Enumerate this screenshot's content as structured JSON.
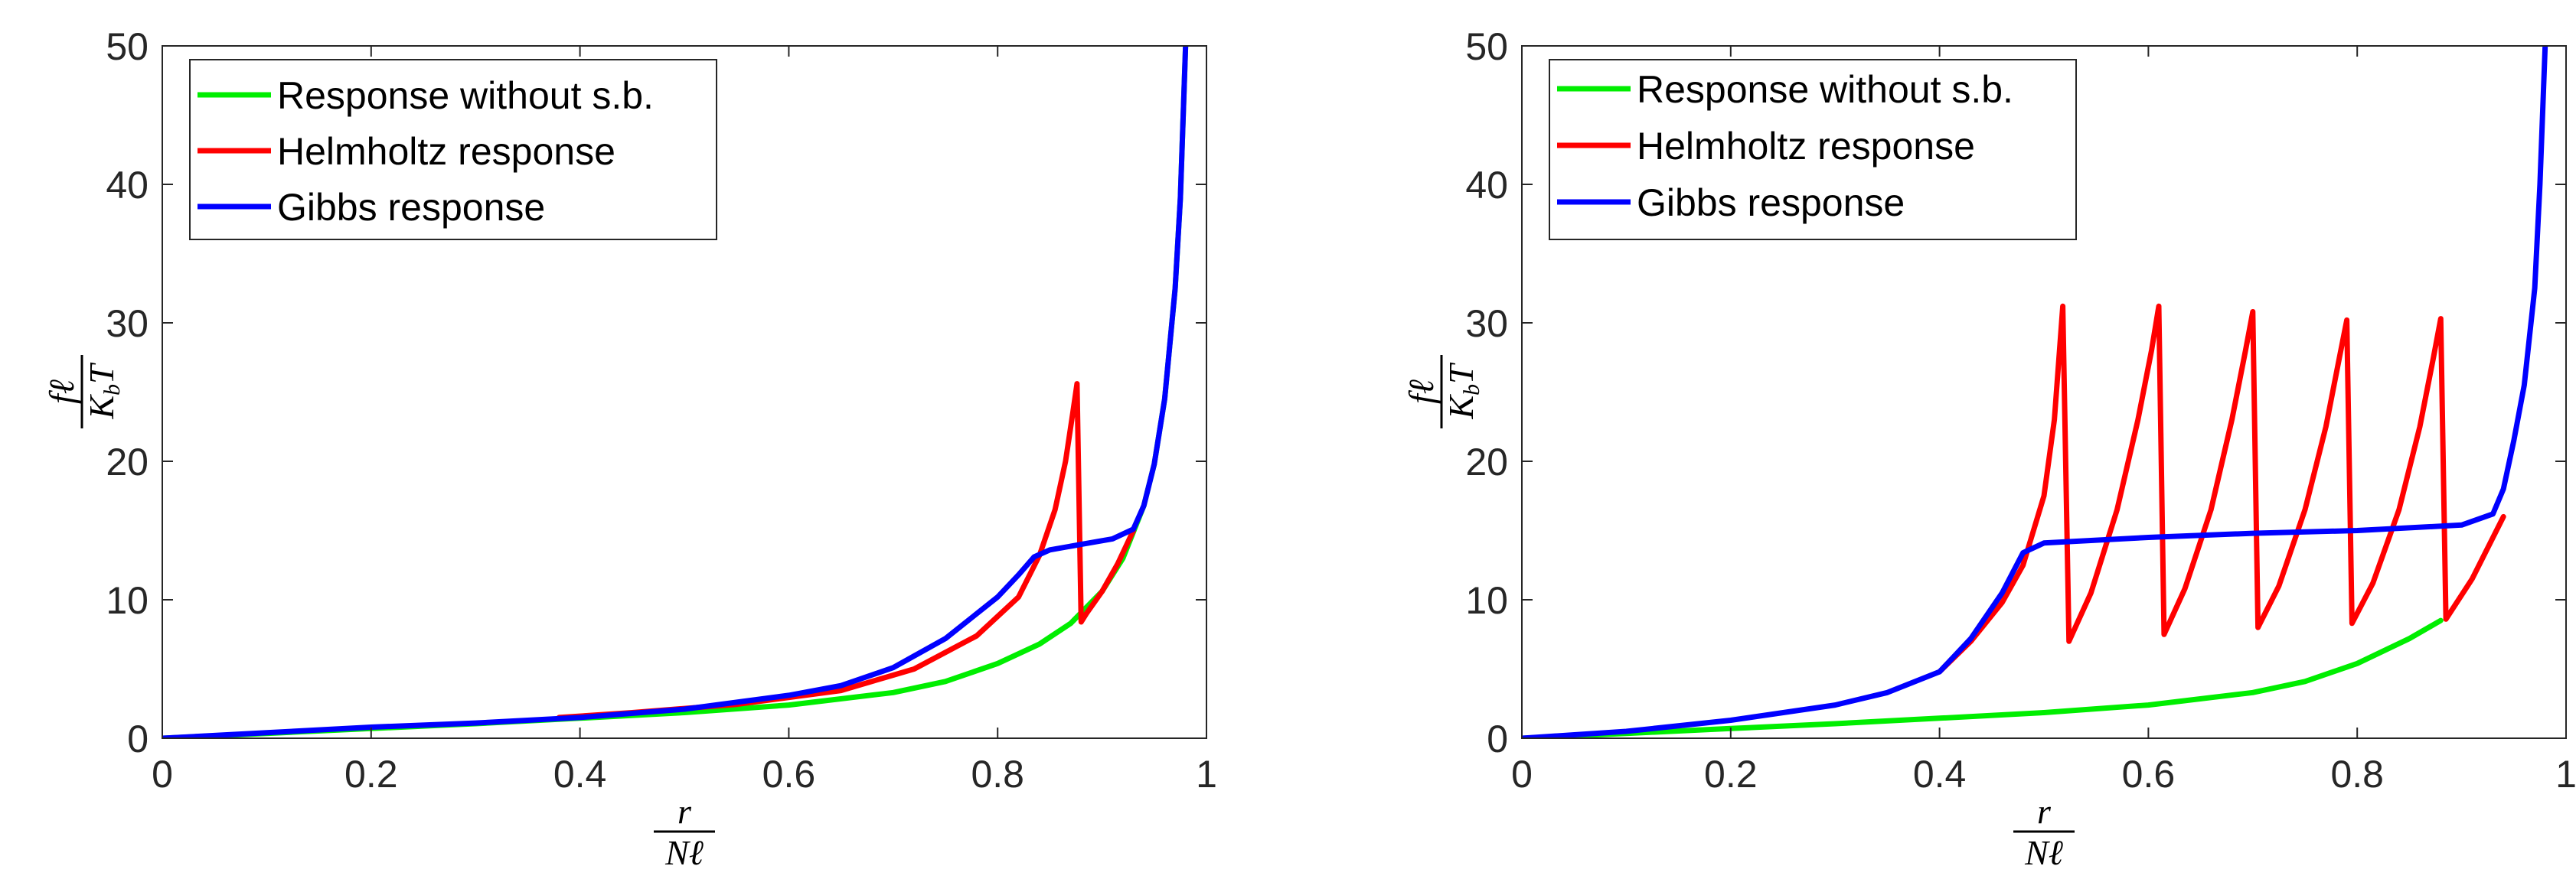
{
  "chart_data": [
    {
      "type": "line",
      "title": "",
      "xlabel": {
        "numerator": "r",
        "denominator": "Nℓ"
      },
      "ylabel": {
        "numerator": "fℓ",
        "denominator": "K",
        "denominator_subscript": "b",
        "denominator_tail": "T"
      },
      "xlim": [
        0,
        1
      ],
      "ylim": [
        0,
        50
      ],
      "xticks": [
        0,
        0.2,
        0.4,
        0.6,
        0.8,
        1
      ],
      "xtick_labels": [
        "0",
        "0.2",
        "0.4",
        "0.6",
        "0.8",
        "1"
      ],
      "yticks": [
        0,
        10,
        20,
        30,
        40,
        50
      ],
      "ytick_labels": [
        "0",
        "10",
        "20",
        "30",
        "40",
        "50"
      ],
      "grid": false,
      "legend": "top-left",
      "series": [
        {
          "name": "Response without s.b.",
          "color": "#00ee00",
          "x": [
            0,
            0.1,
            0.2,
            0.3,
            0.4,
            0.5,
            0.6,
            0.7,
            0.75,
            0.8,
            0.84,
            0.87,
            0.9,
            0.92,
            0.94,
            0.95,
            0.96,
            0.97,
            0.975,
            0.98
          ],
          "y": [
            0,
            0.35,
            0.7,
            1.05,
            1.45,
            1.85,
            2.4,
            3.3,
            4.1,
            5.4,
            6.8,
            8.3,
            10.6,
            13.0,
            16.8,
            19.8,
            24.5,
            32.5,
            39.0,
            50.0
          ]
        },
        {
          "name": "Helmholtz response",
          "color": "#ff0000",
          "x": [
            0.38,
            0.45,
            0.55,
            0.65,
            0.72,
            0.78,
            0.82,
            0.84,
            0.855,
            0.865,
            0.872,
            0.876,
            0.88,
            0.885,
            0.9,
            0.915,
            0.93
          ],
          "y": [
            1.5,
            1.85,
            2.45,
            3.45,
            5.0,
            7.4,
            10.2,
            13.2,
            16.5,
            20.0,
            23.5,
            25.6,
            8.4,
            9.0,
            10.6,
            12.6,
            15.0
          ]
        },
        {
          "name": "Gibbs response",
          "color": "#0000ff",
          "x": [
            0,
            0.1,
            0.2,
            0.3,
            0.4,
            0.5,
            0.6,
            0.65,
            0.7,
            0.75,
            0.8,
            0.82,
            0.835,
            0.85,
            0.88,
            0.91,
            0.93,
            0.94,
            0.95,
            0.96,
            0.97,
            0.975,
            0.98
          ],
          "y": [
            0,
            0.4,
            0.8,
            1.1,
            1.5,
            2.1,
            3.1,
            3.8,
            5.1,
            7.2,
            10.2,
            11.8,
            13.1,
            13.6,
            14.0,
            14.4,
            15.1,
            16.8,
            19.8,
            24.5,
            32.5,
            39.0,
            50.0
          ]
        }
      ]
    },
    {
      "type": "line",
      "title": "",
      "xlabel": {
        "numerator": "r",
        "denominator": "Nℓ"
      },
      "ylabel": {
        "numerator": "fℓ",
        "denominator": "K",
        "denominator_subscript": "b",
        "denominator_tail": "T"
      },
      "xlim": [
        0,
        1
      ],
      "ylim": [
        0,
        50
      ],
      "xticks": [
        0,
        0.2,
        0.4,
        0.6,
        0.8,
        1
      ],
      "xtick_labels": [
        "0",
        "0.2",
        "0.4",
        "0.6",
        "0.8",
        "1"
      ],
      "yticks": [
        0,
        10,
        20,
        30,
        40,
        50
      ],
      "ytick_labels": [
        "0",
        "10",
        "20",
        "30",
        "40",
        "50"
      ],
      "grid": false,
      "legend": "top-left",
      "series": [
        {
          "name": "Response without s.b.",
          "color": "#00ee00",
          "x": [
            0,
            0.1,
            0.2,
            0.3,
            0.4,
            0.5,
            0.6,
            0.7,
            0.75,
            0.8,
            0.85,
            0.88
          ],
          "y": [
            0,
            0.35,
            0.7,
            1.05,
            1.45,
            1.85,
            2.4,
            3.3,
            4.1,
            5.4,
            7.2,
            8.5
          ]
        },
        {
          "name": "Helmholtz response",
          "color": "#ff0000",
          "x": [
            0.4,
            0.43,
            0.46,
            0.48,
            0.5,
            0.51,
            0.518,
            0.524,
            0.545,
            0.57,
            0.59,
            0.603,
            0.61,
            0.615,
            0.635,
            0.66,
            0.68,
            0.693,
            0.7,
            0.705,
            0.725,
            0.75,
            0.77,
            0.783,
            0.79,
            0.795,
            0.815,
            0.84,
            0.86,
            0.873,
            0.88,
            0.885,
            0.91,
            0.94
          ],
          "y": [
            4.8,
            7.0,
            9.8,
            12.5,
            17.5,
            23.0,
            31.2,
            7.0,
            10.5,
            16.5,
            23.0,
            28.0,
            31.2,
            7.5,
            10.8,
            16.5,
            23.0,
            28.0,
            30.8,
            8.0,
            11.0,
            16.5,
            22.5,
            27.5,
            30.2,
            8.3,
            11.2,
            16.5,
            22.5,
            27.5,
            30.3,
            8.6,
            11.5,
            16.0
          ]
        },
        {
          "name": "Gibbs response",
          "color": "#0000ff",
          "x": [
            0,
            0.1,
            0.2,
            0.3,
            0.35,
            0.4,
            0.43,
            0.46,
            0.48,
            0.5,
            0.6,
            0.7,
            0.8,
            0.9,
            0.93,
            0.94,
            0.95,
            0.96,
            0.97,
            0.975,
            0.98
          ],
          "y": [
            0,
            0.5,
            1.3,
            2.4,
            3.3,
            4.8,
            7.2,
            10.5,
            13.4,
            14.1,
            14.5,
            14.8,
            15.0,
            15.4,
            16.2,
            18.0,
            21.5,
            25.5,
            32.5,
            40.0,
            50.0
          ]
        }
      ]
    }
  ]
}
